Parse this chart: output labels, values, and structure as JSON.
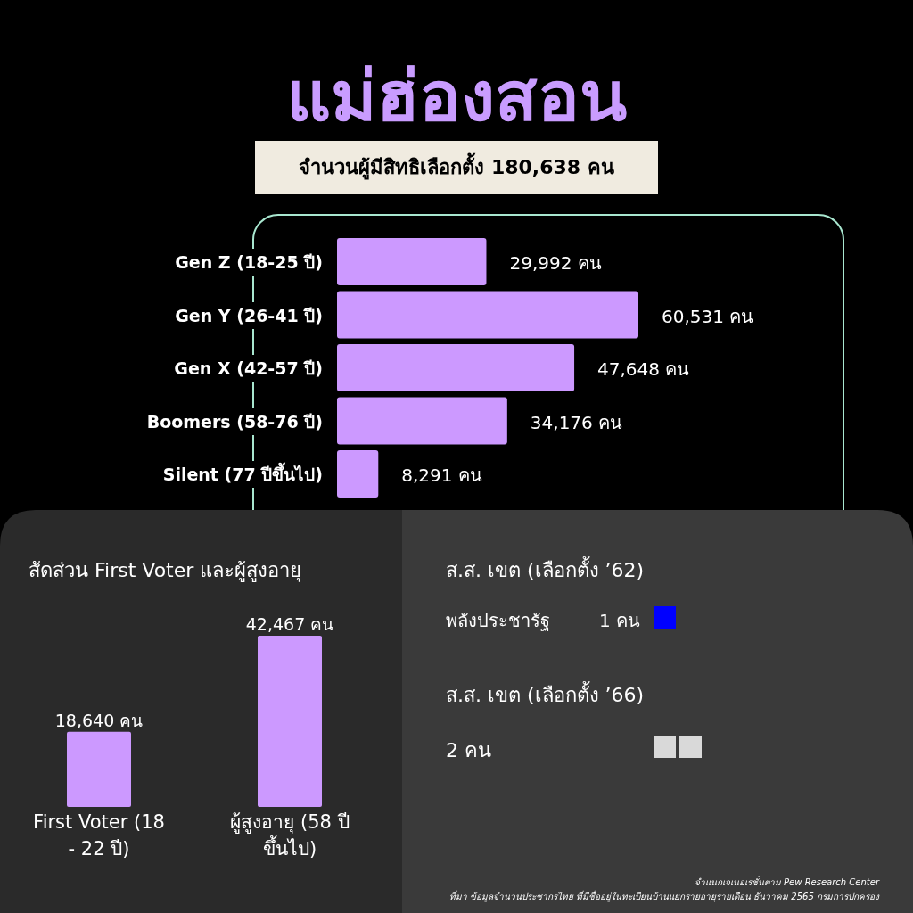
{
  "chart_data": [
    {
      "type": "bar",
      "title": "แม่ฮ่องสอน",
      "subtitle": "จำนวนผู้มีสิทธิเลือกตั้ง 180,638 คน",
      "orientation": "horizontal",
      "color": "#cc99ff",
      "categories": [
        "Gen Z (18-25 ปี)",
        "Gen Y (26-41 ปี)",
        "Gen X (42-57 ปี)",
        "Boomers (58-76 ปี)",
        "Silent (77 ปีขึ้นไป)"
      ],
      "values": [
        29992,
        60531,
        47648,
        34176,
        8291
      ],
      "value_labels": [
        "29,992 คน",
        "60,531 คน",
        "47,648 คน",
        "34,176 คน",
        "8,291 คน"
      ]
    },
    {
      "type": "bar",
      "title": "สัดส่วน First Voter และผู้สูงอายุ",
      "color": "#cc99ff",
      "categories": [
        "First Voter (18 - 22 ปี)",
        "ผู้สูงอายุ (58 ปีขึ้นไป)"
      ],
      "values": [
        18640,
        42467
      ],
      "value_labels": [
        "18,640 คน",
        "42,467 คน"
      ]
    },
    {
      "type": "other",
      "title": "ส.ส. เขต (เลือกตั้ง ’62)",
      "annotations": [
        "พลังประชารัฐ",
        "1 คน",
        "ส.ส. เขต (เลือกตั้ง ’66)",
        "2 คน",
        "จำแนกเจเนอเรชั่นตาม Pew Research Center",
        "ที่มา ข้อมูลจำนวนประชากรไทย ที่มีชื่ออยู่ในทะเบียนบ้านแยกรายอายุรายเดือน ธันวาคม 2565 กรมการปกครอง"
      ]
    }
  ]
}
